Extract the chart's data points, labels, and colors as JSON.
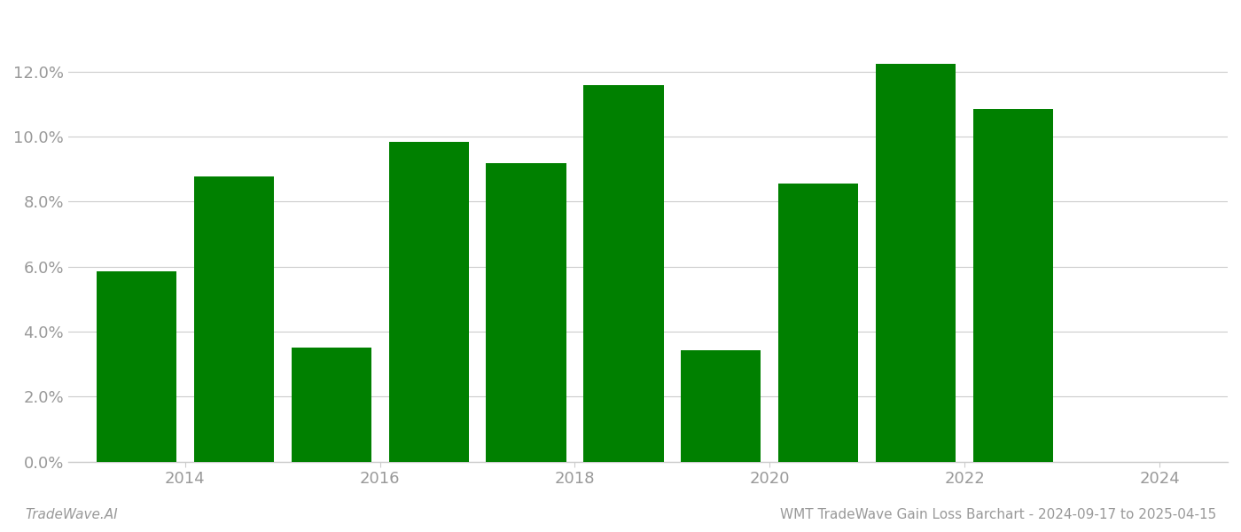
{
  "bar_positions": [
    0,
    1,
    2,
    3,
    4,
    5,
    6,
    7,
    8,
    9,
    10
  ],
  "values": [
    0.0585,
    0.0878,
    0.0352,
    0.0985,
    0.092,
    0.1158,
    0.0342,
    0.0855,
    0.1225,
    0.1085,
    0.0
  ],
  "xtick_positions": [
    0.5,
    2.5,
    4.5,
    6.5,
    8.5,
    10.5
  ],
  "xtick_labels": [
    "2014",
    "2016",
    "2018",
    "2020",
    "2022",
    "2024"
  ],
  "bar_color": "#008000",
  "background_color": "#ffffff",
  "ylim": [
    0,
    0.138
  ],
  "yticks": [
    0.0,
    0.02,
    0.04,
    0.06,
    0.08,
    0.1,
    0.12
  ],
  "grid_color": "#cccccc",
  "text_color": "#999999",
  "footer_left": "TradeWave.AI",
  "footer_right": "WMT TradeWave Gain Loss Barchart - 2024-09-17 to 2025-04-15",
  "footer_fontsize": 11,
  "tick_fontsize": 13,
  "bar_width": 0.82
}
